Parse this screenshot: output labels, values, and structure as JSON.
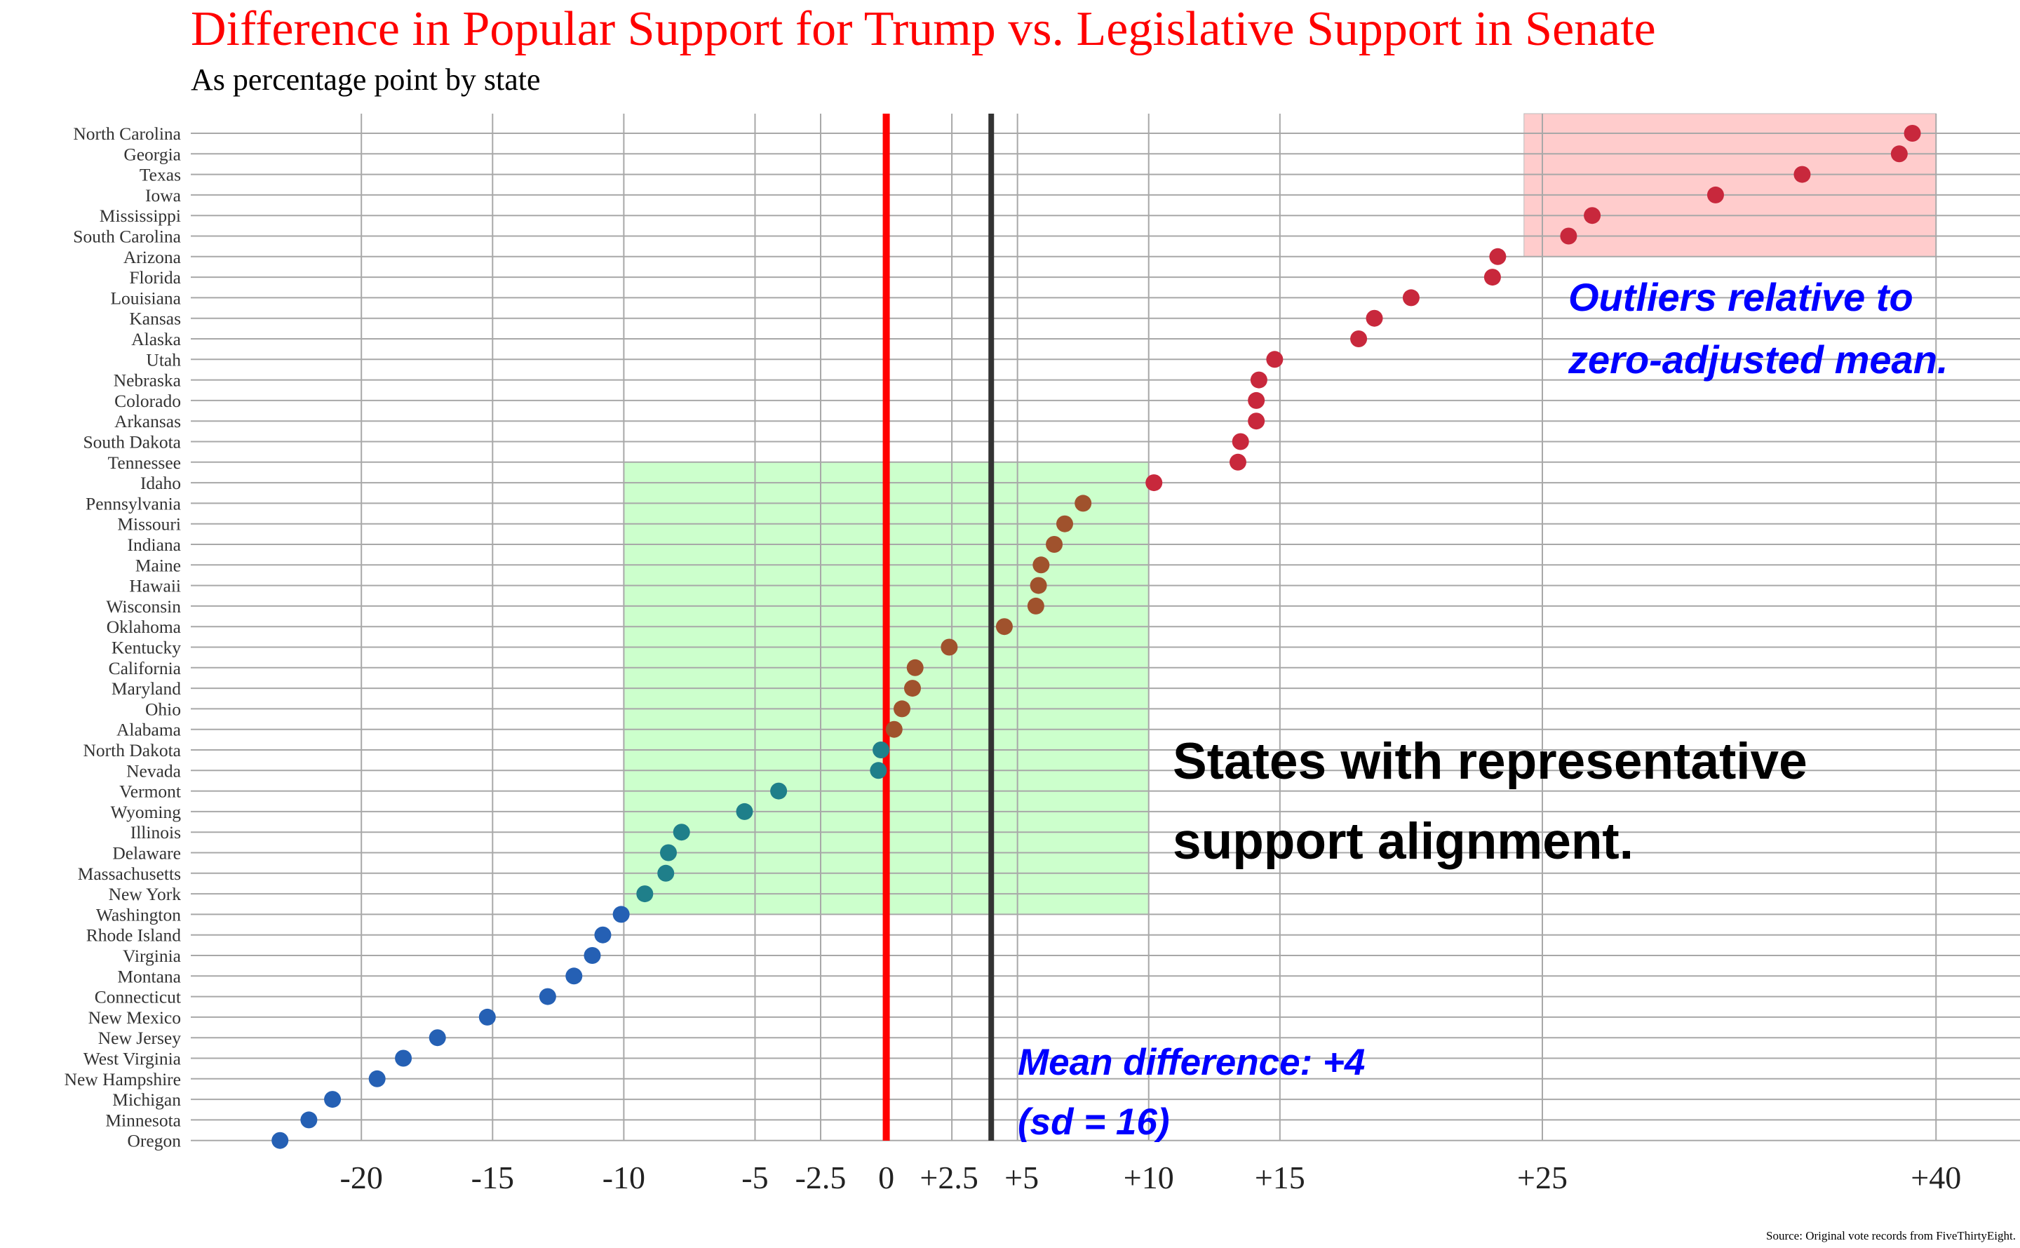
{
  "title": "Difference in Popular Support for Trump vs. Legislative Support in Senate",
  "subtitle": "As percentage point by state",
  "source": "Source: Original vote records from FiveThirtyEight.",
  "colors": {
    "title": "#ff0000",
    "zero_line": "#ff0000",
    "mean_line": "#333333",
    "outlier_box": "#ffcccc",
    "aligned_box": "#ccffcc",
    "annotation_blue": "#0000ff",
    "dot_red": "#c8283c",
    "dot_brown": "#a0522d",
    "dot_teal": "#1f7f8a",
    "dot_blue": "#2560b4"
  },
  "annotations": {
    "outliers_line1": "Outliers relative to",
    "outliers_line2": "zero-adjusted mean.",
    "aligned_line1": "States with representative",
    "aligned_line2": "support alignment.",
    "mean_line1": "Mean difference: +4",
    "mean_line2": "(sd = 16)"
  },
  "chart_data": {
    "type": "scatter",
    "title": "Difference in Popular Support for Trump vs. Legislative Support in Senate",
    "subtitle": "As percentage point by state",
    "xlabel": "",
    "ylabel": "",
    "xlim": [
      -26.5,
      43.2
    ],
    "x_ticks": [
      -20,
      -15,
      -10,
      -5,
      -2.5,
      0,
      2.5,
      4,
      5,
      10,
      15,
      25,
      40
    ],
    "x_tick_labels": [
      "-20",
      "-15",
      "-10",
      "-5",
      "-2.5",
      "0",
      "+2.5",
      "",
      "+5",
      "+10",
      "+15",
      "+25",
      "+40"
    ],
    "grid": true,
    "zero_line": 0,
    "mean_line": 4,
    "mean": 4,
    "sd": 16,
    "regions": [
      {
        "name": "outliers",
        "x_range": [
          24.3,
          40
        ],
        "states_from": "North Carolina",
        "states_to": "Arizona"
      },
      {
        "name": "aligned",
        "x_range": [
          -10,
          10
        ],
        "states_from": "Tennessee",
        "states_to": "Washington"
      }
    ],
    "states": [
      "North Carolina",
      "Georgia",
      "Texas",
      "Iowa",
      "Mississippi",
      "South Carolina",
      "Arizona",
      "Florida",
      "Louisiana",
      "Kansas",
      "Alaska",
      "Utah",
      "Nebraska",
      "Colorado",
      "Arkansas",
      "South Dakota",
      "Tennessee",
      "Idaho",
      "Pennsylvania",
      "Missouri",
      "Indiana",
      "Maine",
      "Hawaii",
      "Wisconsin",
      "Oklahoma",
      "Kentucky",
      "California",
      "Maryland",
      "Ohio",
      "Alabama",
      "North Dakota",
      "Nevada",
      "Vermont",
      "Wyoming",
      "Illinois",
      "Delaware",
      "Massachusetts",
      "New York",
      "Washington",
      "Rhode Island",
      "Virginia",
      "Montana",
      "Connecticut",
      "New Mexico",
      "New Jersey",
      "West Virginia",
      "New Hampshire",
      "Michigan",
      "Minnesota",
      "Oregon"
    ],
    "values": [
      39.1,
      38.6,
      34.9,
      31.6,
      26.9,
      26.0,
      23.3,
      23.1,
      20.0,
      18.6,
      18.0,
      14.8,
      14.2,
      14.1,
      14.1,
      13.5,
      13.4,
      10.2,
      7.5,
      6.8,
      6.4,
      5.9,
      5.8,
      5.7,
      4.5,
      2.4,
      1.1,
      1.0,
      0.6,
      0.3,
      -0.2,
      -0.3,
      -4.1,
      -5.4,
      -7.8,
      -8.3,
      -8.4,
      -9.2,
      -10.1,
      -10.8,
      -11.2,
      -11.9,
      -12.9,
      -15.2,
      -17.1,
      -18.4,
      -19.4,
      -21.1,
      -22.0,
      -23.1
    ],
    "colors": [
      "#c8283c",
      "#c8283c",
      "#c8283c",
      "#c8283c",
      "#c8283c",
      "#c8283c",
      "#c8283c",
      "#c8283c",
      "#c8283c",
      "#c8283c",
      "#c8283c",
      "#c8283c",
      "#c8283c",
      "#c8283c",
      "#c8283c",
      "#c8283c",
      "#c8283c",
      "#c8283c",
      "#a0522d",
      "#a0522d",
      "#a0522d",
      "#a0522d",
      "#a0522d",
      "#a0522d",
      "#a0522d",
      "#a0522d",
      "#a0522d",
      "#a0522d",
      "#a0522d",
      "#a0522d",
      "#1f7f8a",
      "#1f7f8a",
      "#1f7f8a",
      "#1f7f8a",
      "#1f7f8a",
      "#1f7f8a",
      "#1f7f8a",
      "#1f7f8a",
      "#2560b4",
      "#2560b4",
      "#2560b4",
      "#2560b4",
      "#2560b4",
      "#2560b4",
      "#2560b4",
      "#2560b4",
      "#2560b4",
      "#2560b4",
      "#2560b4",
      "#2560b4"
    ]
  }
}
